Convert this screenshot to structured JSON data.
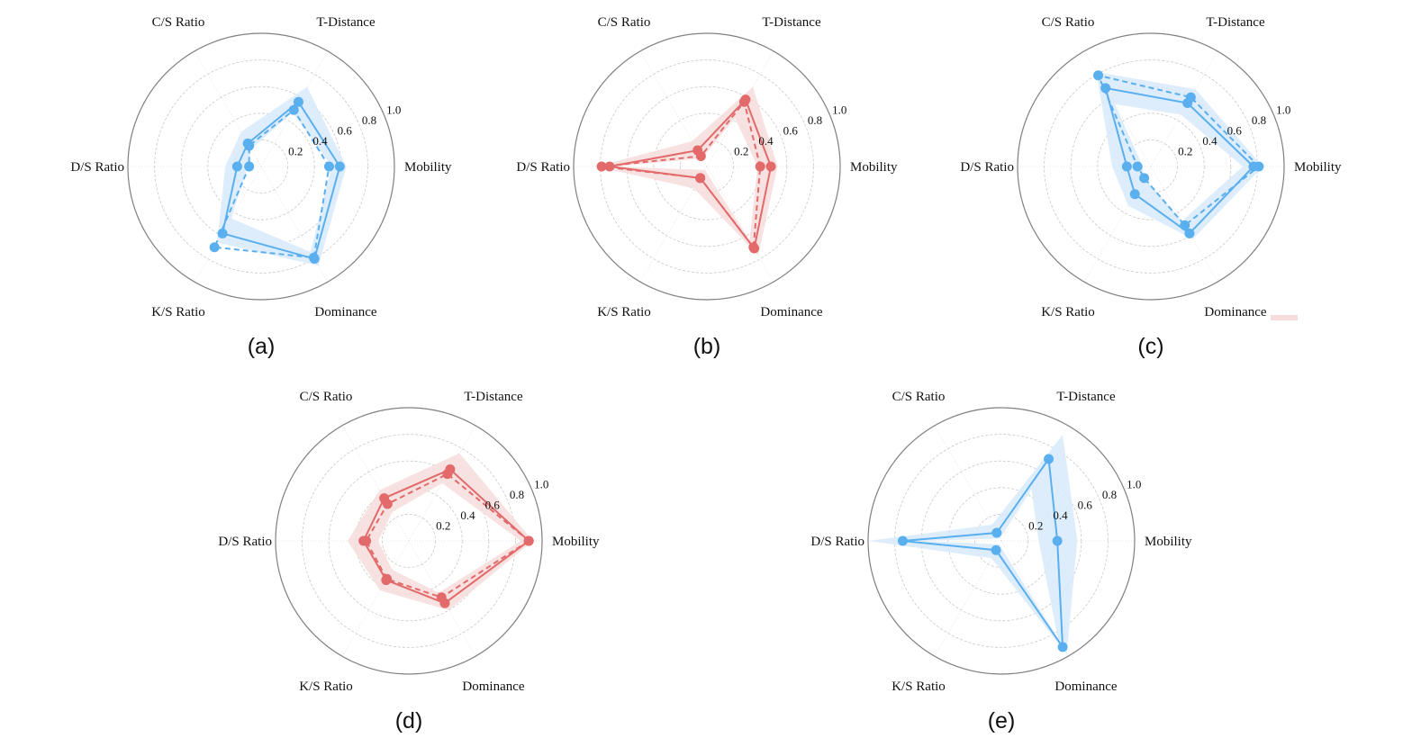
{
  "colors": {
    "blue": "#5aafef",
    "blue_band": "#d8eafa",
    "red": "#e26a6a",
    "red_band": "#f6dcdc"
  },
  "legend_fragment": {
    "patch_color": "#f6dcdc"
  },
  "chart_data": [
    {
      "type": "radar",
      "panel_label": "(a)",
      "color": "blue",
      "axes": [
        "Mobility",
        "T-Distance",
        "C/S Ratio",
        "D/S Ratio",
        "K/S Ratio",
        "Dominance"
      ],
      "rlim": [
        0,
        1.0
      ],
      "rticks": [
        "0.2",
        "0.4",
        "0.6",
        "0.8",
        "1.0"
      ],
      "grid": true,
      "series": [
        {
          "style": "solid",
          "values": [
            0.59,
            0.56,
            0.2,
            0.18,
            0.58,
            0.8
          ]
        },
        {
          "style": "dashed",
          "values": [
            0.51,
            0.49,
            0.18,
            0.09,
            0.7,
            0.79
          ]
        }
      ],
      "band": {
        "lower": [
          0.53,
          0.47,
          0.15,
          0.1,
          0.45,
          0.74
        ],
        "upper": [
          0.64,
          0.69,
          0.3,
          0.27,
          0.66,
          0.86
        ]
      }
    },
    {
      "type": "radar",
      "panel_label": "(b)",
      "color": "red",
      "axes": [
        "Mobility",
        "T-Distance",
        "C/S Ratio",
        "D/S Ratio",
        "K/S Ratio",
        "Dominance"
      ],
      "rlim": [
        0,
        1.0
      ],
      "rticks": [
        "0.2",
        "0.4",
        "0.6",
        "0.8",
        "1.0"
      ],
      "grid": true,
      "series": [
        {
          "style": "solid",
          "values": [
            0.48,
            0.58,
            0.14,
            0.73,
            0.1,
            0.71
          ]
        },
        {
          "style": "dashed",
          "values": [
            0.4,
            0.56,
            0.09,
            0.79,
            0.1,
            0.7
          ]
        }
      ],
      "band": {
        "lower": [
          0.38,
          0.42,
          0.07,
          0.69,
          0.03,
          0.64
        ],
        "upper": [
          0.53,
          0.69,
          0.22,
          0.83,
          0.19,
          0.77
        ]
      }
    },
    {
      "type": "radar",
      "panel_label": "(c)",
      "color": "blue",
      "axes": [
        "Mobility",
        "T-Distance",
        "C/S Ratio",
        "D/S Ratio",
        "K/S Ratio",
        "Dominance"
      ],
      "rlim": [
        0,
        1.0
      ],
      "rticks": [
        "0.2",
        "0.4",
        "0.6",
        "0.8",
        "1.0"
      ],
      "grid": true,
      "series": [
        {
          "style": "solid",
          "values": [
            0.77,
            0.55,
            0.68,
            0.18,
            0.24,
            0.58
          ]
        },
        {
          "style": "dashed",
          "values": [
            0.81,
            0.6,
            0.79,
            0.1,
            0.1,
            0.51
          ]
        }
      ],
      "band": {
        "lower": [
          0.69,
          0.45,
          0.54,
          0.06,
          0.1,
          0.47
        ],
        "upper": [
          0.84,
          0.67,
          0.82,
          0.29,
          0.34,
          0.63
        ]
      }
    },
    {
      "type": "radar",
      "panel_label": "(d)",
      "color": "red",
      "axes": [
        "Mobility",
        "T-Distance",
        "C/S Ratio",
        "D/S Ratio",
        "K/S Ratio",
        "Dominance"
      ],
      "rlim": [
        0,
        1.0
      ],
      "rticks": [
        "0.2",
        "0.4",
        "0.6",
        "0.8",
        "1.0"
      ],
      "grid": true,
      "series": [
        {
          "style": "solid",
          "values": [
            0.9,
            0.62,
            0.37,
            0.34,
            0.34,
            0.54
          ]
        },
        {
          "style": "dashed",
          "values": [
            0.9,
            0.58,
            0.32,
            0.32,
            0.33,
            0.49
          ]
        }
      ],
      "band": {
        "lower": [
          0.84,
          0.5,
          0.25,
          0.23,
          0.25,
          0.45
        ],
        "upper": [
          0.93,
          0.76,
          0.44,
          0.46,
          0.43,
          0.6
        ]
      }
    },
    {
      "type": "radar",
      "panel_label": "(e)",
      "color": "blue",
      "axes": [
        "Mobility",
        "T-Distance",
        "C/S Ratio",
        "D/S Ratio",
        "K/S Ratio",
        "Dominance"
      ],
      "rlim": [
        0,
        1.0
      ],
      "rticks": [
        "0.2",
        "0.4",
        "0.6",
        "0.8",
        "1.0"
      ],
      "grid": true,
      "series": [
        {
          "style": "solid",
          "values": [
            0.42,
            0.71,
            0.07,
            0.74,
            0.08,
            0.92
          ]
        }
      ],
      "band": {
        "lower": [
          0.28,
          0.45,
          0.02,
          0.6,
          0.03,
          0.85
        ],
        "upper": [
          0.57,
          0.92,
          0.14,
          1.0,
          0.15,
          0.98
        ]
      }
    }
  ]
}
